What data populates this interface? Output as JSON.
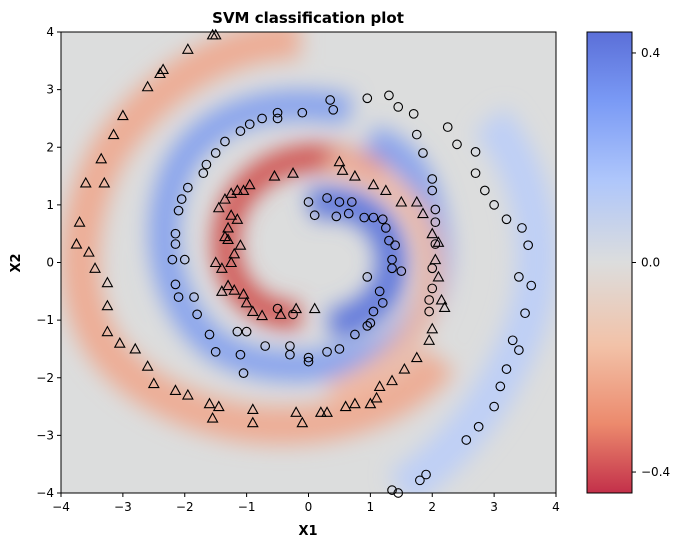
{
  "chart_data": {
    "type": "scatter",
    "title": "SVM classification plot",
    "xlabel": "X1",
    "ylabel": "X2",
    "xlim": [
      -4,
      4
    ],
    "ylim": [
      -4,
      4
    ],
    "xticks": [
      "−4",
      "−3",
      "−2",
      "−1",
      "0",
      "1",
      "2",
      "3",
      "4"
    ],
    "yticks": [
      "−4",
      "−3",
      "−2",
      "−1",
      "0",
      "1",
      "2",
      "3",
      "4"
    ],
    "colorbar": {
      "range": [
        -0.44,
        0.44
      ],
      "ticks": [
        "0.4",
        "0.0",
        "−0.4"
      ],
      "tick_values": [
        0.4,
        0.0,
        -0.4
      ],
      "colormap": "coolwarm"
    },
    "grid": false,
    "series": [
      {
        "marker": "circle",
        "points": [
          [
            0.0,
            1.05
          ],
          [
            0.1,
            0.82
          ],
          [
            0.3,
            1.12
          ],
          [
            0.5,
            1.05
          ],
          [
            0.7,
            1.05
          ],
          [
            0.65,
            0.85
          ],
          [
            0.45,
            0.8
          ],
          [
            0.9,
            0.78
          ],
          [
            1.05,
            0.78
          ],
          [
            1.2,
            0.75
          ],
          [
            1.25,
            0.6
          ],
          [
            1.3,
            0.38
          ],
          [
            1.4,
            0.3
          ],
          [
            1.35,
            0.05
          ],
          [
            1.35,
            -0.1
          ],
          [
            1.5,
            -0.15
          ],
          [
            0.95,
            -0.25
          ],
          [
            1.15,
            -0.5
          ],
          [
            1.2,
            -0.7
          ],
          [
            1.05,
            -0.85
          ],
          [
            1.0,
            -1.05
          ],
          [
            0.95,
            -1.1
          ],
          [
            0.75,
            -1.25
          ],
          [
            0.5,
            -1.5
          ],
          [
            0.3,
            -1.55
          ],
          [
            0.0,
            -1.65
          ],
          [
            0.0,
            -1.72
          ],
          [
            -0.3,
            -1.6
          ],
          [
            -0.3,
            -1.45
          ],
          [
            -0.25,
            -0.9
          ],
          [
            -0.5,
            -0.8
          ],
          [
            -0.7,
            -1.45
          ],
          [
            -1.0,
            -1.2
          ],
          [
            -1.15,
            -1.2
          ],
          [
            -1.1,
            -1.6
          ],
          [
            -1.05,
            -1.92
          ],
          [
            -1.6,
            -1.25
          ],
          [
            -1.5,
            -1.55
          ],
          [
            -1.8,
            -0.9
          ],
          [
            -1.85,
            -0.6
          ],
          [
            -2.1,
            -0.6
          ],
          [
            -2.15,
            -0.38
          ],
          [
            -2.2,
            0.05
          ],
          [
            -2.0,
            0.05
          ],
          [
            -2.15,
            0.32
          ],
          [
            -2.15,
            0.5
          ],
          [
            -2.1,
            0.9
          ],
          [
            -2.05,
            1.1
          ],
          [
            -1.95,
            1.3
          ],
          [
            -1.7,
            1.55
          ],
          [
            -1.65,
            1.7
          ],
          [
            -1.5,
            1.9
          ],
          [
            -1.35,
            2.1
          ],
          [
            -1.1,
            2.28
          ],
          [
            -0.95,
            2.4
          ],
          [
            -0.75,
            2.5
          ],
          [
            -0.5,
            2.5
          ],
          [
            -0.5,
            2.6
          ],
          [
            -0.1,
            2.6
          ],
          [
            0.35,
            2.82
          ],
          [
            0.4,
            2.65
          ],
          [
            0.95,
            2.85
          ],
          [
            1.3,
            2.9
          ],
          [
            1.45,
            2.7
          ],
          [
            1.7,
            2.58
          ],
          [
            1.75,
            2.22
          ],
          [
            1.85,
            1.9
          ],
          [
            2.0,
            1.45
          ],
          [
            2.0,
            1.25
          ],
          [
            2.05,
            0.92
          ],
          [
            2.05,
            0.7
          ],
          [
            2.05,
            0.32
          ],
          [
            2.0,
            -0.1
          ],
          [
            2.0,
            -0.45
          ],
          [
            1.95,
            -0.65
          ],
          [
            1.95,
            -0.85
          ],
          [
            3.3,
            -1.35
          ],
          [
            3.4,
            -1.52
          ],
          [
            3.2,
            -1.85
          ],
          [
            3.1,
            -2.15
          ],
          [
            3.0,
            -2.5
          ],
          [
            2.75,
            -2.85
          ],
          [
            2.55,
            -3.08
          ],
          [
            1.9,
            -3.68
          ],
          [
            1.8,
            -3.78
          ],
          [
            1.35,
            -3.95
          ],
          [
            1.45,
            -4.0
          ],
          [
            3.6,
            -0.4
          ],
          [
            3.5,
            -0.88
          ],
          [
            3.4,
            -0.25
          ],
          [
            3.55,
            0.3
          ],
          [
            3.45,
            0.6
          ],
          [
            3.2,
            0.75
          ],
          [
            3.0,
            1.0
          ],
          [
            2.85,
            1.25
          ],
          [
            2.7,
            1.55
          ],
          [
            2.7,
            1.92
          ],
          [
            2.4,
            2.05
          ],
          [
            2.25,
            2.35
          ]
        ]
      },
      {
        "marker": "triangle",
        "points": [
          [
            -0.55,
            1.5
          ],
          [
            -0.25,
            1.55
          ],
          [
            -0.95,
            1.35
          ],
          [
            -1.05,
            1.25
          ],
          [
            -1.15,
            1.25
          ],
          [
            -1.25,
            1.2
          ],
          [
            -1.35,
            1.1
          ],
          [
            -1.45,
            0.95
          ],
          [
            -1.25,
            0.82
          ],
          [
            -1.15,
            0.75
          ],
          [
            -1.3,
            0.6
          ],
          [
            -1.35,
            0.45
          ],
          [
            -1.3,
            0.4
          ],
          [
            -1.1,
            0.3
          ],
          [
            -1.2,
            0.15
          ],
          [
            -1.25,
            0.0
          ],
          [
            -1.4,
            -0.1
          ],
          [
            -1.5,
            0.0
          ],
          [
            -1.3,
            -0.4
          ],
          [
            -1.4,
            -0.5
          ],
          [
            -1.2,
            -0.48
          ],
          [
            -1.05,
            -0.55
          ],
          [
            -1.0,
            -0.7
          ],
          [
            -0.9,
            -0.85
          ],
          [
            -0.75,
            -0.92
          ],
          [
            -0.45,
            -0.9
          ],
          [
            -0.2,
            -0.8
          ],
          [
            0.1,
            -0.8
          ],
          [
            0.5,
            1.75
          ],
          [
            0.55,
            1.6
          ],
          [
            0.75,
            1.5
          ],
          [
            1.05,
            1.35
          ],
          [
            1.25,
            1.25
          ],
          [
            1.5,
            1.05
          ],
          [
            1.75,
            1.05
          ],
          [
            1.85,
            0.85
          ],
          [
            2.0,
            0.5
          ],
          [
            2.1,
            0.35
          ],
          [
            2.05,
            0.05
          ],
          [
            2.1,
            -0.25
          ],
          [
            2.15,
            -0.65
          ],
          [
            2.2,
            -0.78
          ],
          [
            2.0,
            -1.15
          ],
          [
            1.95,
            -1.35
          ],
          [
            1.75,
            -1.65
          ],
          [
            1.55,
            -1.85
          ],
          [
            1.35,
            -2.05
          ],
          [
            1.15,
            -2.15
          ],
          [
            1.1,
            -2.35
          ],
          [
            1.0,
            -2.45
          ],
          [
            0.75,
            -2.45
          ],
          [
            0.6,
            -2.5
          ],
          [
            0.3,
            -2.6
          ],
          [
            0.2,
            -2.6
          ],
          [
            -0.2,
            -2.6
          ],
          [
            -0.1,
            -2.78
          ],
          [
            -0.9,
            -2.55
          ],
          [
            -0.9,
            -2.78
          ],
          [
            -1.45,
            -2.5
          ],
          [
            -1.55,
            -2.7
          ],
          [
            -1.6,
            -2.45
          ],
          [
            -1.95,
            -2.3
          ],
          [
            -2.15,
            -2.22
          ],
          [
            -2.5,
            -2.1
          ],
          [
            -2.6,
            -1.8
          ],
          [
            -2.8,
            -1.5
          ],
          [
            -3.05,
            -1.4
          ],
          [
            -3.25,
            -1.2
          ],
          [
            -3.25,
            -0.75
          ],
          [
            -3.25,
            -0.35
          ],
          [
            -3.45,
            -0.1
          ],
          [
            -3.55,
            0.18
          ],
          [
            -3.75,
            0.32
          ],
          [
            -3.7,
            0.7
          ],
          [
            -3.6,
            1.38
          ],
          [
            -3.3,
            1.38
          ],
          [
            -3.35,
            1.8
          ],
          [
            -3.15,
            2.22
          ],
          [
            -3.0,
            2.55
          ],
          [
            -2.6,
            3.05
          ],
          [
            -2.4,
            3.28
          ],
          [
            -2.35,
            3.35
          ],
          [
            -1.95,
            3.7
          ],
          [
            -1.5,
            3.95
          ],
          [
            -1.55,
            3.95
          ]
        ]
      }
    ]
  }
}
